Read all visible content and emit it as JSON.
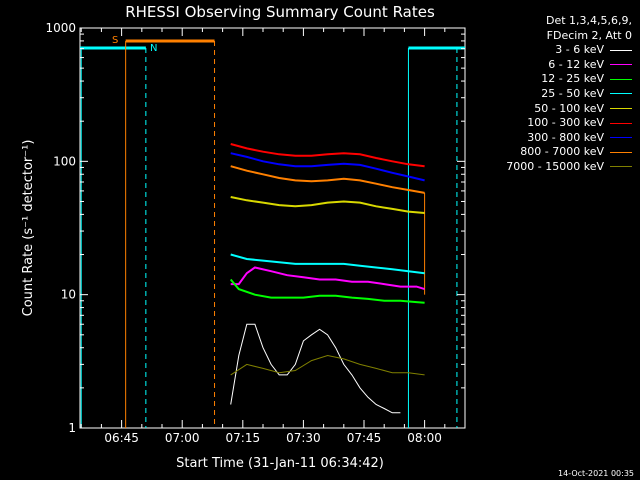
{
  "chart_data": {
    "type": "line",
    "title": "RHESSI Observing Summary Count Rates",
    "xlabel": "Start Time (31-Jan-11 06:34:42)",
    "ylabel": "Count Rate (s⁻¹ detector⁻¹)",
    "yscale": "log",
    "ylim": [
      1,
      1000
    ],
    "xlim": [
      "06:34:42",
      "08:10:00"
    ],
    "y_ticks": [
      "1",
      "10",
      "100",
      "1000"
    ],
    "x_ticks": [
      "06:45",
      "07:00",
      "07:15",
      "07:30",
      "07:45",
      "08:00"
    ],
    "legend_header": [
      "Det 1,3,4,5,6,9,",
      "FDecim 2, Att 0"
    ],
    "legend_position": "top-right",
    "series": [
      {
        "name": "3 - 6 keV",
        "color": "#ffffff",
        "x": [
          "07:12",
          "07:14",
          "07:16",
          "07:18",
          "07:20",
          "07:22",
          "07:24",
          "07:26",
          "07:28",
          "07:30",
          "07:32",
          "07:34",
          "07:36",
          "07:38",
          "07:40",
          "07:42",
          "07:44",
          "07:46",
          "07:48",
          "07:50",
          "07:52",
          "07:54"
        ],
        "y": [
          1.5,
          3.5,
          6.0,
          6.0,
          4.0,
          3.0,
          2.5,
          2.5,
          3.0,
          4.5,
          5.0,
          5.5,
          5.0,
          4.0,
          3.0,
          2.5,
          2.0,
          1.7,
          1.5,
          1.4,
          1.3,
          1.3
        ]
      },
      {
        "name": "6 - 12 keV",
        "color": "#ff00ff",
        "x": [
          "07:12",
          "07:14",
          "07:16",
          "07:18",
          "07:22",
          "07:26",
          "07:30",
          "07:34",
          "07:38",
          "07:42",
          "07:46",
          "07:50",
          "07:54",
          "07:58",
          "08:00"
        ],
        "y": [
          12,
          12,
          14.5,
          16,
          15,
          14,
          13.5,
          13,
          13,
          12.5,
          12.5,
          12,
          11.5,
          11.5,
          11
        ]
      },
      {
        "name": "12 - 25 keV",
        "color": "#00ff00",
        "x": [
          "07:12",
          "07:14",
          "07:18",
          "07:22",
          "07:26",
          "07:30",
          "07:34",
          "07:38",
          "07:42",
          "07:46",
          "07:50",
          "07:54",
          "07:58",
          "08:00"
        ],
        "y": [
          13,
          11,
          10,
          9.5,
          9.5,
          9.5,
          9.8,
          9.8,
          9.5,
          9.3,
          9.0,
          9.0,
          8.8,
          8.7
        ]
      },
      {
        "name": "25 - 50 keV",
        "color": "#00ffff",
        "x": [
          "07:12",
          "07:16",
          "07:20",
          "07:24",
          "07:28",
          "07:32",
          "07:36",
          "07:40",
          "07:44",
          "07:48",
          "07:52",
          "07:56",
          "08:00"
        ],
        "y": [
          20,
          18.5,
          18,
          17.5,
          17,
          17,
          17,
          17,
          16.5,
          16,
          15.5,
          15,
          14.5
        ]
      },
      {
        "name": "50 - 100 keV",
        "color": "#d8d800",
        "x": [
          "07:12",
          "07:16",
          "07:20",
          "07:24",
          "07:28",
          "07:32",
          "07:36",
          "07:40",
          "07:44",
          "07:48",
          "07:52",
          "07:56",
          "08:00"
        ],
        "y": [
          54,
          51,
          49,
          47,
          46,
          47,
          49,
          50,
          49,
          46,
          44,
          42,
          41
        ]
      },
      {
        "name": "100 - 300 keV",
        "color": "#ff0000",
        "x": [
          "07:12",
          "07:16",
          "07:20",
          "07:24",
          "07:28",
          "07:32",
          "07:36",
          "07:40",
          "07:44",
          "07:48",
          "07:52",
          "07:56",
          "08:00"
        ],
        "y": [
          135,
          125,
          118,
          113,
          110,
          110,
          113,
          115,
          113,
          106,
          100,
          95,
          92
        ]
      },
      {
        "name": "300 - 800 keV",
        "color": "#0000ff",
        "x": [
          "07:12",
          "07:16",
          "07:20",
          "07:24",
          "07:28",
          "07:32",
          "07:36",
          "07:40",
          "07:44",
          "07:48",
          "07:52",
          "07:56",
          "08:00"
        ],
        "y": [
          115,
          108,
          100,
          95,
          92,
          92,
          94,
          96,
          94,
          88,
          82,
          77,
          72
        ]
      },
      {
        "name": "800 - 7000 keV",
        "color": "#ff8000",
        "x": [
          "07:12",
          "07:16",
          "07:20",
          "07:24",
          "07:28",
          "07:32",
          "07:36",
          "07:40",
          "07:44",
          "07:48",
          "07:52",
          "07:56",
          "08:00"
        ],
        "y": [
          92,
          85,
          80,
          75,
          72,
          71,
          72,
          74,
          72,
          68,
          64,
          61,
          58
        ]
      },
      {
        "name": "7000 - 15000 keV",
        "color": "#808000",
        "x": [
          "07:12",
          "07:16",
          "07:20",
          "07:24",
          "07:28",
          "07:32",
          "07:36",
          "07:40",
          "07:44",
          "07:48",
          "07:52",
          "07:56",
          "08:00"
        ],
        "y": [
          2.5,
          3.0,
          2.8,
          2.6,
          2.7,
          3.2,
          3.5,
          3.3,
          3.0,
          2.8,
          2.6,
          2.6,
          2.5
        ]
      }
    ],
    "markers": [
      {
        "label": "S",
        "color": "#ff8000"
      },
      {
        "label": "N",
        "color": "#00ffff"
      }
    ],
    "annotations": {
      "saa_label": "S",
      "night_label": "N"
    }
  },
  "footer": {
    "timestamp": "14-Oct-2021 00:35"
  }
}
